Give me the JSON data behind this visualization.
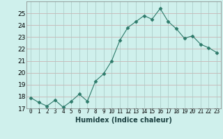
{
  "x": [
    0,
    1,
    2,
    3,
    4,
    5,
    6,
    7,
    8,
    9,
    10,
    11,
    12,
    13,
    14,
    15,
    16,
    17,
    18,
    19,
    20,
    21,
    22,
    23
  ],
  "y": [
    17.9,
    17.5,
    17.2,
    17.7,
    17.1,
    17.6,
    18.2,
    17.6,
    19.3,
    19.9,
    21.0,
    22.7,
    23.8,
    24.3,
    24.8,
    24.5,
    25.4,
    24.3,
    23.7,
    22.9,
    23.1,
    22.4,
    22.1,
    21.7
  ],
  "line_color": "#2d7a6a",
  "marker_color": "#2d7a6a",
  "marker": "D",
  "marker_size": 2.5,
  "bg_color": "#cff0ec",
  "grid_color_h": "#c8a8a8",
  "grid_color_v": "#a8c8c4",
  "xlabel": "Humidex (Indice chaleur)",
  "ylim": [
    17,
    26
  ],
  "yticks": [
    17,
    18,
    19,
    20,
    21,
    22,
    23,
    24,
    25
  ],
  "xticks": [
    0,
    1,
    2,
    3,
    4,
    5,
    6,
    7,
    8,
    9,
    10,
    11,
    12,
    13,
    14,
    15,
    16,
    17,
    18,
    19,
    20,
    21,
    22,
    23
  ],
  "xtick_labels": [
    "0",
    "1",
    "2",
    "3",
    "4",
    "5",
    "6",
    "7",
    "8",
    "9",
    "10",
    "11",
    "12",
    "13",
    "14",
    "15",
    "16",
    "17",
    "18",
    "19",
    "20",
    "21",
    "22",
    "23"
  ]
}
